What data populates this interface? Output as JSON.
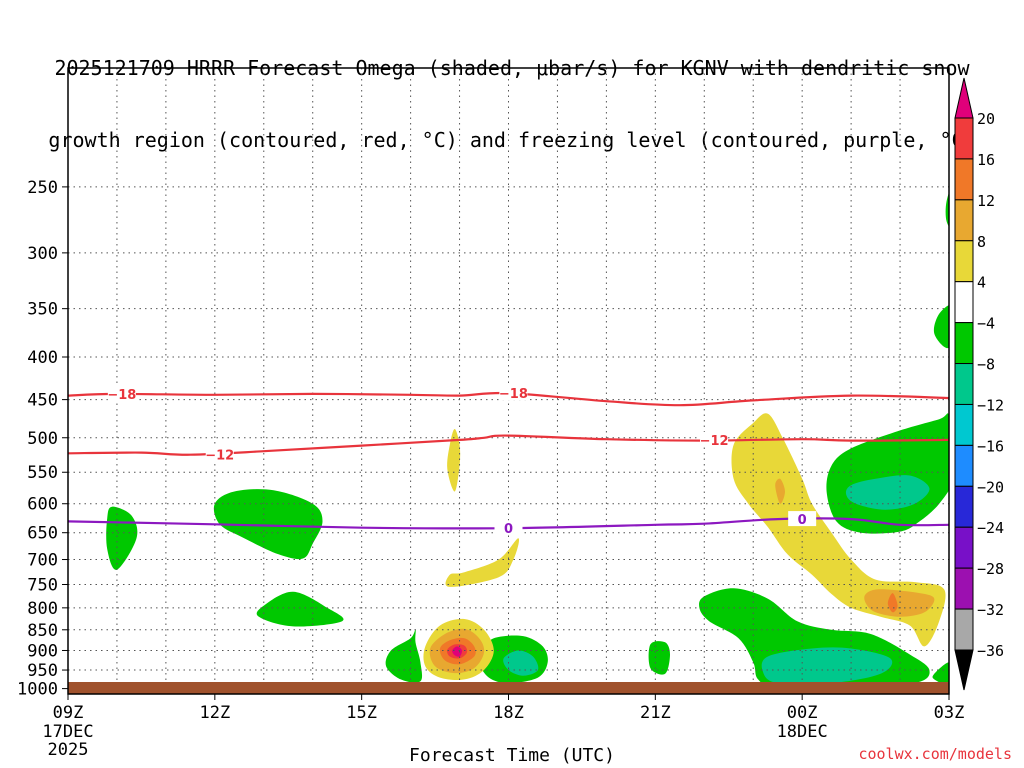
{
  "title_line1": "2025121709 HRRR Forecast Omega (shaded, μbar/s) for KGNV with dendritic snow",
  "title_line2": "growth region (contoured, red, °C) and freezing level (contoured, purple, °C)",
  "footer_site": "coolwx.com/models",
  "chart_data": {
    "type": "time-height cross section",
    "xlabel": "Forecast Time (UTC)",
    "x_range_hours": [
      0,
      18
    ],
    "x_ticks": [
      {
        "hour": 0,
        "label": "09Z",
        "sub": "17DEC",
        "sub2": "2025"
      },
      {
        "hour": 3,
        "label": "12Z"
      },
      {
        "hour": 6,
        "label": "15Z"
      },
      {
        "hour": 9,
        "label": "18Z"
      },
      {
        "hour": 12,
        "label": "21Z"
      },
      {
        "hour": 15,
        "label": "00Z",
        "sub": "18DEC"
      },
      {
        "hour": 18,
        "label": "03Z"
      }
    ],
    "ylabel": "",
    "y_scale": "log-pressure",
    "y_range_hpa": [
      1015,
      180
    ],
    "y_ticks": [
      250,
      300,
      350,
      400,
      450,
      500,
      550,
      600,
      650,
      700,
      750,
      800,
      850,
      900,
      950,
      1000
    ],
    "grid": true,
    "colorbar": {
      "labels": [
        20,
        16,
        12,
        8,
        4,
        -4,
        -8,
        -12,
        -16,
        -20,
        -24,
        -28,
        -32,
        -36
      ],
      "colors": [
        "#e0007a",
        "#f03c3c",
        "#f07828",
        "#e8a830",
        "#e8d838",
        "#ffffff",
        "#00c800",
        "#00c88c",
        "#00c8d0",
        "#1e8cff",
        "#2828d8",
        "#7810c8",
        "#9c10b0",
        "#a8a8a8",
        "#000000"
      ]
    },
    "contours": [
      {
        "name": "-18",
        "color": "#e8343c",
        "points": [
          [
            0,
            445
          ],
          [
            1,
            443
          ],
          [
            3,
            444
          ],
          [
            5,
            443
          ],
          [
            7,
            444
          ],
          [
            8,
            445
          ],
          [
            9,
            442
          ],
          [
            11,
            452
          ],
          [
            12.5,
            457
          ],
          [
            14,
            451
          ],
          [
            16,
            445
          ],
          [
            18,
            448
          ]
        ],
        "labels": [
          [
            1.1,
            443
          ],
          [
            9.1,
            442
          ]
        ]
      },
      {
        "name": "-12",
        "color": "#e8343c",
        "points": [
          [
            0,
            522
          ],
          [
            1.5,
            521
          ],
          [
            2.5,
            524
          ],
          [
            4,
            519
          ],
          [
            6,
            511
          ],
          [
            8,
            503
          ],
          [
            8.5,
            500
          ],
          [
            9,
            497
          ],
          [
            11,
            502
          ],
          [
            13,
            504
          ],
          [
            15,
            502
          ],
          [
            16,
            504
          ],
          [
            18,
            503
          ]
        ],
        "labels": [
          [
            3.1,
            524
          ],
          [
            13.2,
            503
          ]
        ]
      },
      {
        "name": "0",
        "color": "#8c18c0",
        "points": [
          [
            0,
            630
          ],
          [
            3,
            635
          ],
          [
            6,
            641
          ],
          [
            9,
            642
          ],
          [
            12,
            636
          ],
          [
            13,
            634
          ],
          [
            14.5,
            626
          ],
          [
            16,
            626
          ],
          [
            17,
            636
          ],
          [
            18,
            636
          ]
        ],
        "labels": [
          [
            9,
            642
          ],
          [
            15,
            626
          ]
        ]
      }
    ],
    "omega_regions": [
      {
        "level": -8,
        "color": "#00c800",
        "pts": [
          [
            0.9,
            605
          ],
          [
            1.3,
            620
          ],
          [
            1.4,
            660
          ],
          [
            1.0,
            720
          ],
          [
            0.8,
            680
          ],
          [
            0.8,
            625
          ]
        ]
      },
      {
        "level": -8,
        "color": "#00c800",
        "pts": [
          [
            3.0,
            600
          ],
          [
            3.4,
            580
          ],
          [
            4.2,
            578
          ],
          [
            5.0,
            600
          ],
          [
            5.2,
            630
          ],
          [
            5.0,
            670
          ],
          [
            4.8,
            698
          ],
          [
            4.3,
            690
          ],
          [
            3.6,
            660
          ],
          [
            3.1,
            635
          ]
        ]
      },
      {
        "level": -8,
        "color": "#00c800",
        "pts": [
          [
            4.0,
            795
          ],
          [
            4.6,
            765
          ],
          [
            5.3,
            800
          ],
          [
            5.6,
            830
          ],
          [
            4.6,
            842
          ],
          [
            3.9,
            820
          ]
        ]
      },
      {
        "level": -8,
        "color": "#00c800",
        "pts": [
          [
            7.0,
            870
          ],
          [
            7.1,
            850
          ],
          [
            7.1,
            880
          ],
          [
            7.2,
            930
          ],
          [
            7.2,
            980
          ],
          [
            6.8,
            975
          ],
          [
            6.5,
            940
          ],
          [
            6.6,
            900
          ]
        ]
      },
      {
        "level": -8,
        "color": "#00c800",
        "pts": [
          [
            8.5,
            900
          ],
          [
            8.7,
            870
          ],
          [
            9.3,
            865
          ],
          [
            9.7,
            890
          ],
          [
            9.8,
            930
          ],
          [
            9.6,
            970
          ],
          [
            9.0,
            985
          ],
          [
            8.6,
            970
          ],
          [
            8.4,
            930
          ]
        ]
      },
      {
        "level": -12,
        "color": "#00c88c",
        "pts": [
          [
            8.9,
            920
          ],
          [
            9.2,
            900
          ],
          [
            9.5,
            915
          ],
          [
            9.6,
            950
          ],
          [
            9.3,
            965
          ],
          [
            9.0,
            950
          ]
        ]
      },
      {
        "level": -8,
        "color": "#00c800",
        "pts": [
          [
            11.9,
            885
          ],
          [
            12.2,
            880
          ],
          [
            12.3,
            910
          ],
          [
            12.2,
            960
          ],
          [
            11.9,
            945
          ]
        ]
      },
      {
        "level": -8,
        "color": "#00c800",
        "pts": [
          [
            13.0,
            775
          ],
          [
            13.6,
            758
          ],
          [
            14.3,
            780
          ],
          [
            14.9,
            830
          ],
          [
            15.6,
            850
          ],
          [
            16.4,
            860
          ],
          [
            17.2,
            910
          ],
          [
            17.6,
            950
          ],
          [
            17.3,
            985
          ],
          [
            15.8,
            1000
          ],
          [
            14.5,
            1000
          ],
          [
            14.1,
            975
          ],
          [
            14.0,
            930
          ],
          [
            13.7,
            870
          ],
          [
            13.1,
            830
          ],
          [
            12.9,
            800
          ]
        ]
      },
      {
        "level": -12,
        "color": "#00c88c",
        "pts": [
          [
            14.3,
            915
          ],
          [
            15.2,
            895
          ],
          [
            16.0,
            895
          ],
          [
            16.8,
            920
          ],
          [
            16.6,
            960
          ],
          [
            15.6,
            985
          ],
          [
            14.5,
            985
          ],
          [
            14.2,
            955
          ]
        ]
      },
      {
        "level": -8,
        "color": "#00c800",
        "pts": [
          [
            15.6,
            540
          ],
          [
            16.0,
            515
          ],
          [
            17.0,
            490
          ],
          [
            17.8,
            475
          ],
          [
            18.0,
            470
          ],
          [
            18.0,
            520
          ],
          [
            18.1,
            560
          ],
          [
            17.8,
            600
          ],
          [
            17.4,
            630
          ],
          [
            17.0,
            648
          ],
          [
            16.2,
            650
          ],
          [
            15.7,
            630
          ],
          [
            15.5,
            580
          ]
        ]
      },
      {
        "level": -12,
        "color": "#00c88c",
        "pts": [
          [
            16.0,
            570
          ],
          [
            16.5,
            560
          ],
          [
            17.2,
            555
          ],
          [
            17.6,
            575
          ],
          [
            17.3,
            600
          ],
          [
            16.7,
            610
          ],
          [
            16.1,
            600
          ],
          [
            15.9,
            585
          ]
        ]
      },
      {
        "level": -8,
        "color": "#00c800",
        "pts": [
          [
            17.8,
            355
          ],
          [
            18.1,
            345
          ],
          [
            18.2,
            360
          ],
          [
            18.0,
            390
          ],
          [
            17.7,
            375
          ]
        ]
      },
      {
        "level": -8,
        "color": "#00c800",
        "pts": [
          [
            17.95,
            260
          ],
          [
            18.1,
            248
          ],
          [
            18.1,
            280
          ],
          [
            17.95,
            275
          ]
        ]
      },
      {
        "level": -8,
        "color": "#00c800",
        "pts": [
          [
            17.7,
            960
          ],
          [
            18.0,
            930
          ],
          [
            18.1,
            960
          ],
          [
            18.0,
            990
          ],
          [
            17.7,
            975
          ]
        ]
      },
      {
        "level": 4,
        "color": "#e8d838",
        "pts": [
          [
            7.8,
            510
          ],
          [
            7.9,
            488
          ],
          [
            8.0,
            510
          ],
          [
            8.0,
            540
          ],
          [
            7.9,
            580
          ],
          [
            7.75,
            545
          ]
        ]
      },
      {
        "level": 4,
        "color": "#e8d838",
        "pts": [
          [
            7.8,
            730
          ],
          [
            8.1,
            725
          ],
          [
            8.8,
            700
          ],
          [
            9.2,
            660
          ],
          [
            9.1,
            700
          ],
          [
            8.8,
            735
          ],
          [
            7.8,
            755
          ]
        ]
      },
      {
        "level": 4,
        "color": "#e8d838",
        "pts": [
          [
            7.3,
            890
          ],
          [
            7.6,
            840
          ],
          [
            8.1,
            825
          ],
          [
            8.5,
            850
          ],
          [
            8.7,
            900
          ],
          [
            8.5,
            950
          ],
          [
            8.1,
            975
          ],
          [
            7.6,
            970
          ],
          [
            7.3,
            940
          ]
        ]
      },
      {
        "level": 8,
        "color": "#e8a830",
        "pts": [
          [
            7.4,
            895
          ],
          [
            7.7,
            860
          ],
          [
            8.1,
            848
          ],
          [
            8.4,
            870
          ],
          [
            8.5,
            905
          ],
          [
            8.3,
            945
          ],
          [
            7.9,
            958
          ],
          [
            7.5,
            940
          ]
        ]
      },
      {
        "level": 12,
        "color": "#f07828",
        "pts": [
          [
            7.6,
            895
          ],
          [
            7.8,
            875
          ],
          [
            8.1,
            870
          ],
          [
            8.3,
            890
          ],
          [
            8.3,
            915
          ],
          [
            8.0,
            935
          ],
          [
            7.7,
            925
          ]
        ]
      },
      {
        "level": 16,
        "color": "#f03c3c",
        "pts": [
          [
            7.75,
            898
          ],
          [
            7.9,
            885
          ],
          [
            8.1,
            888
          ],
          [
            8.15,
            905
          ],
          [
            8.0,
            920
          ],
          [
            7.8,
            915
          ]
        ]
      },
      {
        "level": 20,
        "color": "#e0007a",
        "pts": [
          [
            7.85,
            900
          ],
          [
            7.95,
            890
          ],
          [
            8.05,
            900
          ],
          [
            8.0,
            915
          ],
          [
            7.9,
            912
          ]
        ]
      },
      {
        "level": 4,
        "color": "#e8d838",
        "pts": [
          [
            13.6,
            510
          ],
          [
            14.0,
            480
          ],
          [
            14.3,
            468
          ],
          [
            14.6,
            500
          ],
          [
            15.0,
            560
          ],
          [
            15.2,
            600
          ],
          [
            15.6,
            650
          ],
          [
            16.0,
            700
          ],
          [
            16.5,
            740
          ],
          [
            17.3,
            745
          ],
          [
            17.9,
            760
          ],
          [
            17.8,
            830
          ],
          [
            17.5,
            890
          ],
          [
            17.2,
            840
          ],
          [
            16.6,
            820
          ],
          [
            16.0,
            800
          ],
          [
            15.6,
            770
          ],
          [
            15.2,
            730
          ],
          [
            14.7,
            690
          ],
          [
            14.3,
            640
          ],
          [
            13.9,
            600
          ],
          [
            13.6,
            560
          ]
        ]
      },
      {
        "level": 8,
        "color": "#e8a830",
        "pts": [
          [
            16.3,
            770
          ],
          [
            16.6,
            760
          ],
          [
            17.4,
            768
          ],
          [
            17.7,
            780
          ],
          [
            17.5,
            810
          ],
          [
            17.0,
            820
          ],
          [
            16.5,
            810
          ],
          [
            16.3,
            790
          ]
        ]
      },
      {
        "level": 8,
        "color": "#e8a830",
        "pts": [
          [
            14.45,
            570
          ],
          [
            14.55,
            560
          ],
          [
            14.65,
            580
          ],
          [
            14.55,
            600
          ]
        ]
      },
      {
        "level": 12,
        "color": "#f07828",
        "pts": [
          [
            16.75,
            790
          ],
          [
            16.85,
            768
          ],
          [
            16.95,
            795
          ],
          [
            16.85,
            810
          ]
        ]
      }
    ]
  }
}
